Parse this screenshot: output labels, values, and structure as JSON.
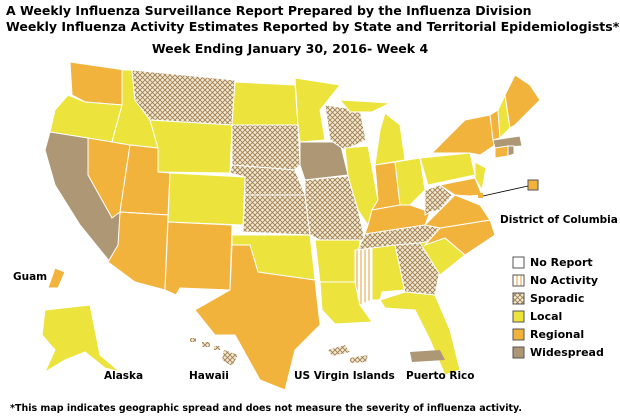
{
  "header": {
    "title": "A Weekly Influenza Surveillance Report Prepared by the Influenza Division",
    "subtitle": "Weekly Influenza Activity Estimates Reported by State and Territorial Epidemiologists*",
    "week": "Week Ending January 30, 2016- Week 4"
  },
  "legend": [
    "No Report",
    "No Activity",
    "Sporadic",
    "Local",
    "Regional",
    "Widespread"
  ],
  "places": {
    "guam": "Guam",
    "alaska": "Alaska",
    "hawaii": "Hawaii",
    "virgin_islands": "US Virgin Islands",
    "puerto_rico": "Puerto Rico",
    "dc": "District of Columbia"
  },
  "footnote": "*This map indicates geographic spread and does not measure the severity of influenza activity."
}
